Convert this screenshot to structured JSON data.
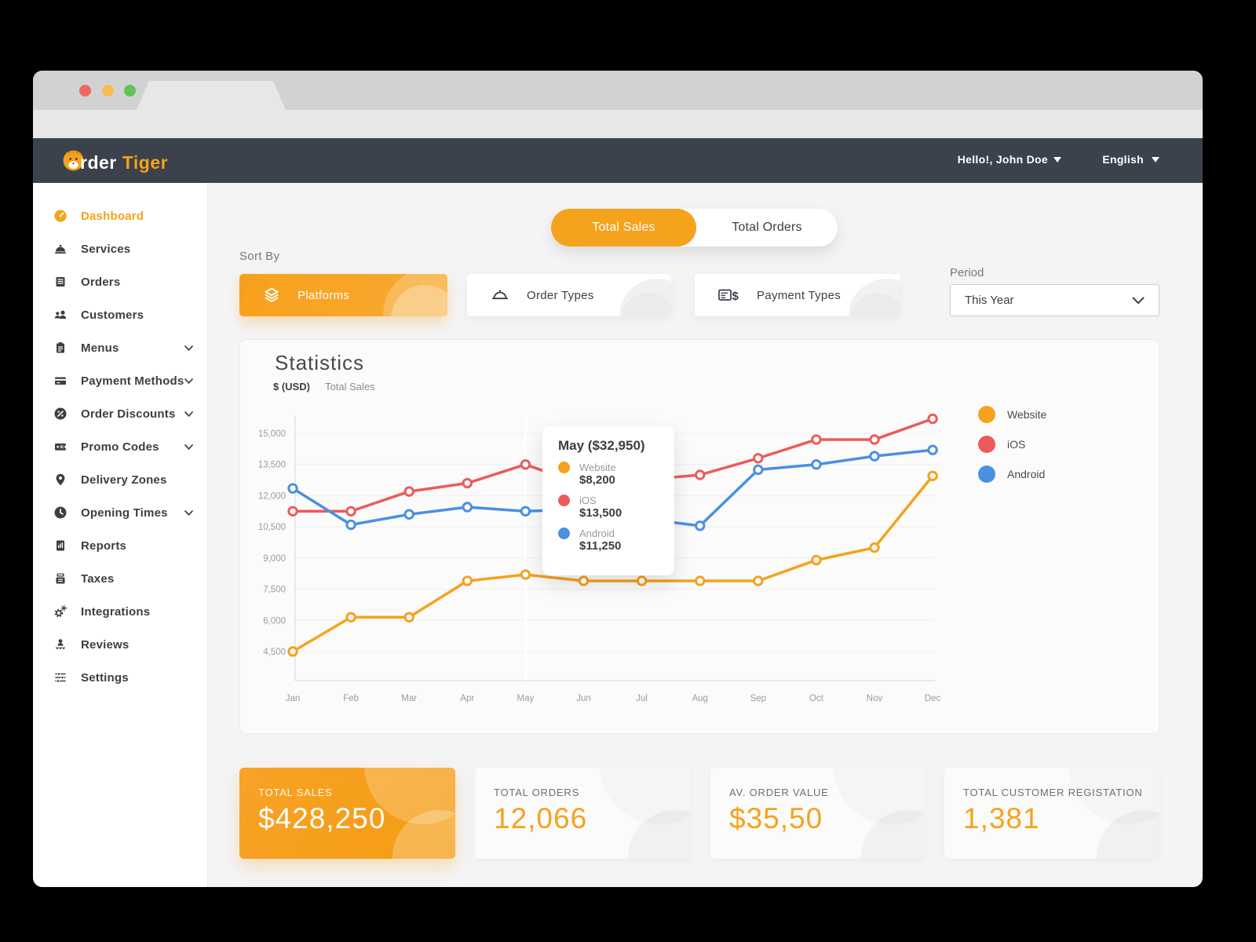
{
  "header": {
    "logo_white": "rder",
    "logo_orange": "Tiger",
    "greeting": "Hello!, John Doe",
    "language": "English"
  },
  "sidebar": {
    "items": [
      {
        "label": "Dashboard",
        "active": true
      },
      {
        "label": "Services"
      },
      {
        "label": "Orders"
      },
      {
        "label": "Customers"
      },
      {
        "label": "Menus",
        "expandable": true
      },
      {
        "label": "Payment Methods",
        "expandable": true
      },
      {
        "label": "Order Discounts",
        "expandable": true
      },
      {
        "label": "Promo Codes",
        "expandable": true
      },
      {
        "label": "Delivery Zones"
      },
      {
        "label": "Opening Times",
        "expandable": true
      },
      {
        "label": "Reports"
      },
      {
        "label": "Taxes"
      },
      {
        "label": "Integrations"
      },
      {
        "label": "Reviews"
      },
      {
        "label": "Settings"
      }
    ]
  },
  "toggle": {
    "left": "Total Sales",
    "right": "Total Orders",
    "active": "Total Sales"
  },
  "filters": {
    "sort_by_label": "Sort By",
    "platforms_label": "Platforms",
    "order_types_label": "Order Types",
    "payment_types_label": "Payment Types",
    "period_label": "Period",
    "period_value": "This Year"
  },
  "statistics": {
    "title": "Statistics",
    "y_axis_unit": "$ (USD)",
    "y_axis_caption": "Total Sales",
    "tooltip": {
      "title": "May ($32,950)",
      "rows": [
        {
          "label": "Website",
          "value": "$8,200"
        },
        {
          "label": "iOS",
          "value": "$13,500"
        },
        {
          "label": "Android",
          "value": "$11,250"
        }
      ]
    }
  },
  "chart_data": {
    "type": "line",
    "title": "Statistics",
    "ylabel": "$ (USD)",
    "x": [
      "Jan",
      "Feb",
      "Mar",
      "Apr",
      "May",
      "Jun",
      "Jul",
      "Aug",
      "Sep",
      "Oct",
      "Nov",
      "Dec"
    ],
    "series": [
      {
        "name": "Website",
        "color": "#F5A21D",
        "values": [
          4500,
          6150,
          6150,
          7900,
          8200,
          7900,
          7900,
          7900,
          7900,
          8900,
          9500,
          12950
        ]
      },
      {
        "name": "iOS",
        "color": "#EC5B5B",
        "values": [
          11250,
          11250,
          12200,
          12600,
          13500,
          12500,
          12750,
          13000,
          13800,
          14700,
          14700,
          15700
        ]
      },
      {
        "name": "Android",
        "color": "#4A90E2",
        "values": [
          12350,
          10600,
          11100,
          11450,
          11250,
          11350,
          10900,
          10550,
          13250,
          13500,
          13900,
          14200
        ]
      }
    ],
    "yticks": [
      4500,
      6000,
      7500,
      9000,
      10500,
      12000,
      13500,
      15000
    ],
    "ylim": [
      3000,
      16000
    ],
    "grid": true,
    "legend_position": "right",
    "highlight_x": "May"
  },
  "cards": [
    {
      "label": "TOTAL SALES",
      "value": "$428,250"
    },
    {
      "label": "TOTAL ORDERS",
      "value": "12,066"
    },
    {
      "label": "AV. ORDER VALUE",
      "value": "$35,50"
    },
    {
      "label": "TOTAL CUSTOMER REGISTATION",
      "value": "1,381"
    }
  ],
  "colors": {
    "accent": "#F5A21D",
    "red": "#EC5B5B",
    "blue": "#4A90E2",
    "header_bg": "#3B424B"
  }
}
